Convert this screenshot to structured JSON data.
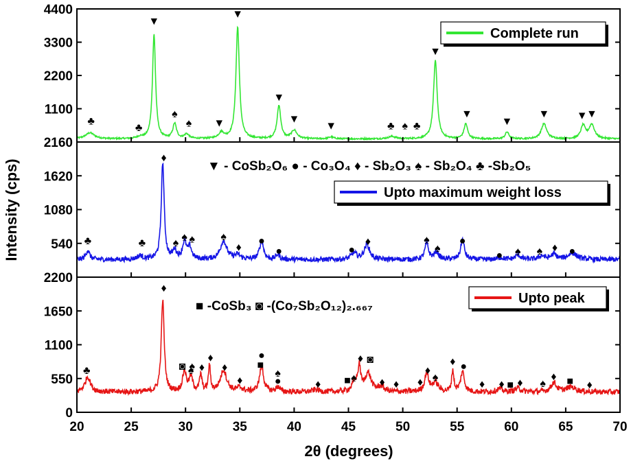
{
  "chart_data": {
    "type": "line",
    "title": "",
    "xlabel": "2θ (degrees)",
    "ylabel": "Intensity (cps)",
    "xlim": [
      20,
      70
    ],
    "xticks": [
      "20",
      "25",
      "30",
      "35",
      "40",
      "45",
      "50",
      "55",
      "60",
      "65",
      "70"
    ],
    "grid": false,
    "marker_glyphs": {
      "CoSb2O6": "▼",
      "Co3O4": "●",
      "Sb2O3": "♦",
      "Sb2O4": "♠",
      "Sb2O5": "♣",
      "CoSb3": "■",
      "Co7Sb2O12": "◙"
    },
    "phase_key_top": [
      {
        "glyph": "▼",
        "text": "- CoSb₂O₆"
      },
      {
        "glyph": "●",
        "text": "- Co₃O₄"
      },
      {
        "glyph": "♦",
        "text": "- Sb₂O₃"
      },
      {
        "glyph": "♠",
        "text": "- Sb₂O₄"
      },
      {
        "glyph": "♣",
        "text": "-Sb₂O₅"
      }
    ],
    "phase_key_bottom": [
      {
        "glyph": "■",
        "text": "-CoSb₃"
      },
      {
        "glyph": "◙",
        "text": "-(Co₇Sb₂O₁₂)₂.₆₆₇"
      }
    ],
    "panels": [
      {
        "name": "Complete run",
        "color": "#33e633",
        "ylim": [
          0,
          4400
        ],
        "yticks": [
          "4400",
          "3300",
          "2200",
          "1100"
        ],
        "baseline": 100,
        "noise": 25,
        "peaks": [
          {
            "x": 21.2,
            "h": 200,
            "w": 0.5
          },
          {
            "x": 25.8,
            "h": 60,
            "w": 0.3
          },
          {
            "x": 27.1,
            "h": 3450,
            "w": 0.17
          },
          {
            "x": 29.0,
            "h": 500,
            "w": 0.2
          },
          {
            "x": 30.1,
            "h": 150,
            "w": 0.25
          },
          {
            "x": 33.3,
            "h": 200,
            "w": 0.3
          },
          {
            "x": 34.8,
            "h": 3700,
            "w": 0.19
          },
          {
            "x": 38.6,
            "h": 1100,
            "w": 0.2
          },
          {
            "x": 40.0,
            "h": 280,
            "w": 0.3
          },
          {
            "x": 43.4,
            "h": 60,
            "w": 0.3
          },
          {
            "x": 49.0,
            "h": 80,
            "w": 0.4
          },
          {
            "x": 53.0,
            "h": 2600,
            "w": 0.2
          },
          {
            "x": 55.8,
            "h": 500,
            "w": 0.2
          },
          {
            "x": 59.6,
            "h": 230,
            "w": 0.2
          },
          {
            "x": 63.0,
            "h": 500,
            "w": 0.3
          },
          {
            "x": 66.6,
            "h": 430,
            "w": 0.25
          },
          {
            "x": 67.4,
            "h": 470,
            "w": 0.3
          }
        ],
        "markers": [
          {
            "x": 21.3,
            "y": 720,
            "glyph": "♣"
          },
          {
            "x": 25.7,
            "y": 500,
            "glyph": "♣"
          },
          {
            "x": 27.1,
            "y": 4020,
            "glyph": "▼"
          },
          {
            "x": 29.0,
            "y": 950,
            "glyph": "♠"
          },
          {
            "x": 30.3,
            "y": 650,
            "glyph": "♠"
          },
          {
            "x": 33.1,
            "y": 650,
            "glyph": "▼"
          },
          {
            "x": 34.8,
            "y": 4250,
            "glyph": "▼"
          },
          {
            "x": 38.6,
            "y": 1500,
            "glyph": "▼"
          },
          {
            "x": 40.0,
            "y": 780,
            "glyph": "▼"
          },
          {
            "x": 43.4,
            "y": 560,
            "glyph": "▼"
          },
          {
            "x": 48.9,
            "y": 560,
            "glyph": "♣"
          },
          {
            "x": 50.2,
            "y": 560,
            "glyph": "♠"
          },
          {
            "x": 51.3,
            "y": 560,
            "glyph": "♣"
          },
          {
            "x": 53.0,
            "y": 3020,
            "glyph": "▼"
          },
          {
            "x": 55.9,
            "y": 950,
            "glyph": "▼"
          },
          {
            "x": 59.6,
            "y": 700,
            "glyph": "▼"
          },
          {
            "x": 63.0,
            "y": 950,
            "glyph": "▼"
          },
          {
            "x": 66.5,
            "y": 900,
            "glyph": "▼"
          },
          {
            "x": 67.4,
            "y": 950,
            "glyph": "▼"
          }
        ]
      },
      {
        "name": "Upto maximum weight loss",
        "color": "#1515e6",
        "ylim": [
          0,
          2160
        ],
        "yticks": [
          "2160",
          "1620",
          "1080",
          "540"
        ],
        "baseline": 280,
        "noise": 40,
        "peaks": [
          {
            "x": 21.0,
            "h": 150,
            "w": 0.2
          },
          {
            "x": 25.8,
            "h": 60,
            "w": 0.3
          },
          {
            "x": 27.9,
            "h": 1550,
            "w": 0.16
          },
          {
            "x": 29.0,
            "h": 140,
            "w": 0.2
          },
          {
            "x": 29.9,
            "h": 270,
            "w": 0.22
          },
          {
            "x": 30.4,
            "h": 180,
            "w": 0.2
          },
          {
            "x": 33.5,
            "h": 300,
            "w": 0.35
          },
          {
            "x": 34.8,
            "h": 70,
            "w": 0.3
          },
          {
            "x": 37.0,
            "h": 300,
            "w": 0.22
          },
          {
            "x": 38.5,
            "h": 80,
            "w": 0.2
          },
          {
            "x": 45.5,
            "h": 100,
            "w": 0.3
          },
          {
            "x": 46.7,
            "h": 240,
            "w": 0.3
          },
          {
            "x": 52.2,
            "h": 260,
            "w": 0.2
          },
          {
            "x": 53.1,
            "h": 120,
            "w": 0.25
          },
          {
            "x": 55.5,
            "h": 320,
            "w": 0.2
          },
          {
            "x": 59.0,
            "h": 30,
            "w": 0.3
          },
          {
            "x": 60.6,
            "h": 70,
            "w": 0.3
          },
          {
            "x": 62.8,
            "h": 60,
            "w": 0.3
          },
          {
            "x": 63.9,
            "h": 80,
            "w": 0.3
          },
          {
            "x": 65.6,
            "h": 100,
            "w": 0.5
          }
        ],
        "markers": [
          {
            "x": 21.0,
            "y": 590,
            "glyph": "♣"
          },
          {
            "x": 26.0,
            "y": 560,
            "glyph": "♣"
          },
          {
            "x": 28.0,
            "y": 1920,
            "glyph": "♦"
          },
          {
            "x": 29.1,
            "y": 560,
            "glyph": "♠"
          },
          {
            "x": 29.9,
            "y": 650,
            "glyph": "♠"
          },
          {
            "x": 30.6,
            "y": 620,
            "glyph": "♠"
          },
          {
            "x": 33.5,
            "y": 660,
            "glyph": "♠"
          },
          {
            "x": 34.9,
            "y": 490,
            "glyph": "♦"
          },
          {
            "x": 37.0,
            "y": 590,
            "glyph": "●"
          },
          {
            "x": 38.6,
            "y": 430,
            "glyph": "●"
          },
          {
            "x": 45.3,
            "y": 450,
            "glyph": "●"
          },
          {
            "x": 46.8,
            "y": 580,
            "glyph": "♦"
          },
          {
            "x": 52.2,
            "y": 610,
            "glyph": "♠"
          },
          {
            "x": 53.2,
            "y": 470,
            "glyph": "♠"
          },
          {
            "x": 55.5,
            "y": 590,
            "glyph": "●"
          },
          {
            "x": 58.9,
            "y": 360,
            "glyph": "●"
          },
          {
            "x": 60.6,
            "y": 420,
            "glyph": "♠"
          },
          {
            "x": 62.6,
            "y": 430,
            "glyph": "♠"
          },
          {
            "x": 64.0,
            "y": 480,
            "glyph": "♦"
          },
          {
            "x": 65.6,
            "y": 430,
            "glyph": "●"
          }
        ]
      },
      {
        "name": "Upto peak",
        "color": "#e61515",
        "ylim": [
          0,
          2200
        ],
        "yticks": [
          "2200",
          "1650",
          "1100",
          "550",
          "0"
        ],
        "baseline": 330,
        "noise": 45,
        "peaks": [
          {
            "x": 21.0,
            "h": 250,
            "w": 0.3
          },
          {
            "x": 27.9,
            "h": 1500,
            "w": 0.16
          },
          {
            "x": 29.9,
            "h": 330,
            "w": 0.2
          },
          {
            "x": 30.5,
            "h": 230,
            "w": 0.2
          },
          {
            "x": 31.4,
            "h": 270,
            "w": 0.13
          },
          {
            "x": 32.2,
            "h": 420,
            "w": 0.11
          },
          {
            "x": 33.5,
            "h": 350,
            "w": 0.35
          },
          {
            "x": 35.0,
            "h": 60,
            "w": 0.3
          },
          {
            "x": 37.0,
            "h": 420,
            "w": 0.22
          },
          {
            "x": 38.5,
            "h": 80,
            "w": 0.2
          },
          {
            "x": 42.0,
            "h": 40,
            "w": 0.3
          },
          {
            "x": 45.6,
            "h": 150,
            "w": 0.3
          },
          {
            "x": 46.0,
            "h": 370,
            "w": 0.15
          },
          {
            "x": 46.8,
            "h": 300,
            "w": 0.35
          },
          {
            "x": 48.0,
            "h": 80,
            "w": 0.3
          },
          {
            "x": 52.2,
            "h": 300,
            "w": 0.22
          },
          {
            "x": 53.0,
            "h": 150,
            "w": 0.3
          },
          {
            "x": 54.6,
            "h": 350,
            "w": 0.12
          },
          {
            "x": 55.5,
            "h": 330,
            "w": 0.2
          },
          {
            "x": 58.9,
            "h": 50,
            "w": 0.3
          },
          {
            "x": 60.6,
            "h": 60,
            "w": 0.3
          },
          {
            "x": 63.9,
            "h": 150,
            "w": 0.3
          },
          {
            "x": 65.5,
            "h": 80,
            "w": 0.5
          }
        ],
        "markers": [
          {
            "x": 20.9,
            "y": 690,
            "glyph": "♣"
          },
          {
            "x": 28.0,
            "y": 2030,
            "glyph": "♦"
          },
          {
            "x": 29.7,
            "y": 760,
            "glyph": "◙"
          },
          {
            "x": 30.6,
            "y": 760,
            "glyph": "♠"
          },
          {
            "x": 30.5,
            "y": 690,
            "glyph": "♠"
          },
          {
            "x": 31.5,
            "y": 740,
            "glyph": "♦"
          },
          {
            "x": 32.3,
            "y": 900,
            "glyph": "♦"
          },
          {
            "x": 33.6,
            "y": 740,
            "glyph": "♦"
          },
          {
            "x": 35.0,
            "y": 530,
            "glyph": "♦"
          },
          {
            "x": 36.9,
            "y": 780,
            "glyph": "■"
          },
          {
            "x": 37.0,
            "y": 940,
            "glyph": "●"
          },
          {
            "x": 38.5,
            "y": 650,
            "glyph": "♠"
          },
          {
            "x": 38.5,
            "y": 520,
            "glyph": "●"
          },
          {
            "x": 42.2,
            "y": 470,
            "glyph": "♦"
          },
          {
            "x": 44.9,
            "y": 530,
            "glyph": "■"
          },
          {
            "x": 45.5,
            "y": 570,
            "glyph": "♠"
          },
          {
            "x": 46.1,
            "y": 890,
            "glyph": "♦"
          },
          {
            "x": 47.0,
            "y": 870,
            "glyph": "◙"
          },
          {
            "x": 48.1,
            "y": 500,
            "glyph": "♦"
          },
          {
            "x": 49.4,
            "y": 470,
            "glyph": "♦"
          },
          {
            "x": 51.6,
            "y": 500,
            "glyph": "♦"
          },
          {
            "x": 52.3,
            "y": 690,
            "glyph": "♦"
          },
          {
            "x": 53.0,
            "y": 580,
            "glyph": "♠"
          },
          {
            "x": 54.6,
            "y": 840,
            "glyph": "♦"
          },
          {
            "x": 55.6,
            "y": 760,
            "glyph": "●"
          },
          {
            "x": 57.3,
            "y": 470,
            "glyph": "♦"
          },
          {
            "x": 59.1,
            "y": 470,
            "glyph": "♦"
          },
          {
            "x": 59.9,
            "y": 460,
            "glyph": "■"
          },
          {
            "x": 60.8,
            "y": 490,
            "glyph": "♦"
          },
          {
            "x": 62.9,
            "y": 480,
            "glyph": "♠"
          },
          {
            "x": 63.9,
            "y": 590,
            "glyph": "♦"
          },
          {
            "x": 65.4,
            "y": 520,
            "glyph": "■"
          },
          {
            "x": 67.2,
            "y": 460,
            "glyph": "♦"
          }
        ]
      }
    ]
  }
}
